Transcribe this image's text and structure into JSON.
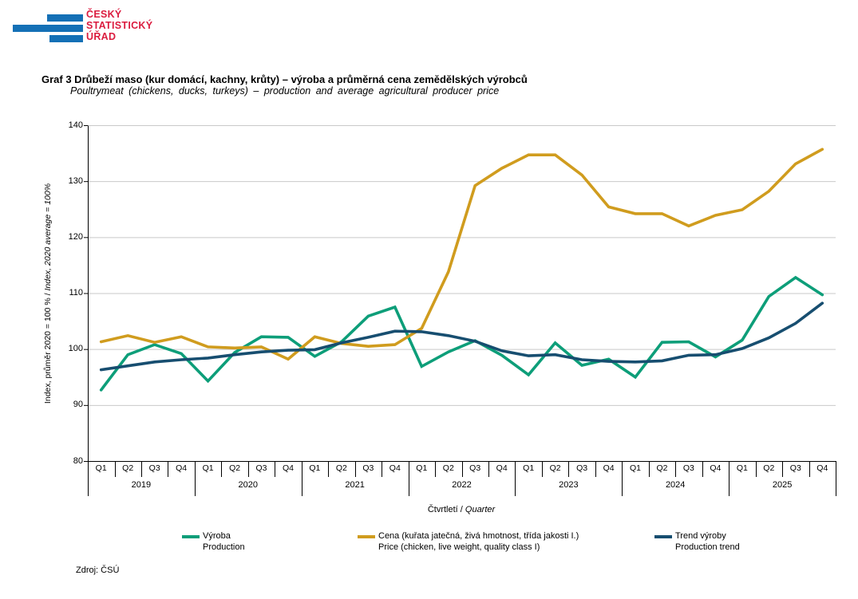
{
  "logo": {
    "line1": "ČESKÝ",
    "line2": "STATISTICKÝ",
    "line3": "ÚŘAD"
  },
  "title": {
    "cs": "Graf 3 Drůbeží maso (kur domácí, kachny, krůty) – výroba a průměrná cena zemědělských výrobců",
    "en": "Poultrymeat (chickens, ducks, turkeys) – production and average agricultural producer price"
  },
  "chart_data": {
    "type": "line",
    "years": [
      "2019",
      "2020",
      "2021",
      "2022",
      "2023",
      "2024",
      "2025"
    ],
    "quarter_labels": [
      "Q1",
      "Q2",
      "Q3",
      "Q4"
    ],
    "ylim": [
      80,
      140
    ],
    "ytick_step": 10,
    "grid": true,
    "legend_position": "bottom",
    "ylabel_cs": "Index, průměr 2020 = 100 %",
    "ylabel_en": "Index, 2020 average = 100%",
    "xlabel_cs": "Čtvrtletí",
    "xlabel_en": "Quarter",
    "series": [
      {
        "id": "production",
        "name_cs": "Výroba",
        "name_en": "Production",
        "color": "#0D9E79",
        "values": [
          92.7,
          99.0,
          100.8,
          99.2,
          94.3,
          99.4,
          102.2,
          102.1,
          98.7,
          101.3,
          105.9,
          107.5,
          96.9,
          99.5,
          101.5,
          98.9,
          95.4,
          101.1,
          97.1,
          98.2,
          95.0,
          101.2,
          101.3,
          98.6,
          101.6,
          109.4,
          112.8,
          109.7
        ]
      },
      {
        "id": "price",
        "name_cs": "Cena (kuřata jatečná, živá hmotnost, třída jakosti I.)",
        "name_en": "Price (chicken, live weight, quality class I)",
        "color": "#D09C1E",
        "values": [
          101.3,
          102.4,
          101.2,
          102.2,
          100.4,
          100.2,
          100.4,
          98.2,
          102.2,
          101.0,
          100.5,
          100.8,
          103.7,
          113.8,
          129.2,
          132.3,
          134.7,
          134.7,
          131.1,
          125.4,
          124.2,
          124.2,
          122.0,
          123.9,
          124.9,
          128.2,
          133.1,
          135.7
        ]
      },
      {
        "id": "production-trend",
        "name_cs": "Trend výroby",
        "name_en": "Production trend",
        "color": "#174E70",
        "values": [
          96.3,
          97.0,
          97.7,
          98.1,
          98.4,
          99.0,
          99.5,
          99.8,
          99.9,
          101.1,
          102.1,
          103.2,
          103.1,
          102.4,
          101.4,
          99.7,
          98.8,
          99.0,
          98.1,
          97.8,
          97.7,
          97.9,
          98.9,
          99.0,
          100.1,
          102.0,
          104.6,
          108.2
        ]
      }
    ]
  },
  "colors": {
    "logo_blue": "#1470B6",
    "logo_red": "#DB1C3F",
    "grid": "#C9C9C9",
    "axis": "#000000"
  },
  "source": "Zdroj: ČSÚ"
}
